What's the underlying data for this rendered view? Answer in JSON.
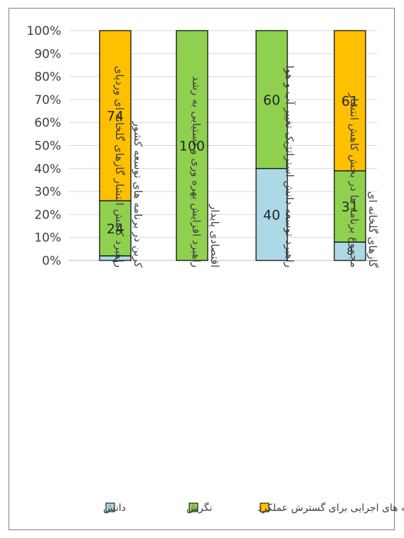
{
  "chart_data": {
    "type": "bar",
    "stacked": "percent",
    "categories": [
      [
        "راهبرد کاهش انتشار گازهای گلخانه ای وردپای",
        "کربن در برنامه های توسعه کشور"
      ],
      [
        "راهبرد افزایش بهره وری و دستیابی به رشد",
        "اقتصادی پایدار"
      ],
      [
        "راهبرد توسعه دانش استراتژیک تغییر آب و هوا"
      ],
      [
        "مجموع برنامه ها در بخش کاهش انتشار",
        "گازهای گلخانه ای"
      ]
    ],
    "series": [
      {
        "name": "دانش",
        "color": "#add8e6",
        "values": [
          2,
          0,
          40,
          8
        ]
      },
      {
        "name": "نگرش",
        "color": "#8fd14f",
        "values": [
          24,
          100,
          60,
          31
        ]
      },
      {
        "name": "برنامه های اجرایی برای گسترش عملکرد",
        "color": "#ffc000",
        "values": [
          74,
          0,
          0,
          61
        ]
      }
    ],
    "yticks": [
      "0%",
      "10%",
      "20%",
      "30%",
      "40%",
      "50%",
      "60%",
      "70%",
      "80%",
      "90%",
      "100%"
    ],
    "ylim": [
      0,
      100
    ],
    "grid": true,
    "legend_position": "bottom"
  },
  "legend": {
    "items": [
      {
        "label": "برنامه های اجرایی برای گسترش عملکرد",
        "color": "#ffc000"
      },
      {
        "label": "نگرش",
        "color": "#8fd14f"
      },
      {
        "label": "دانش",
        "color": "#add8e6"
      }
    ]
  }
}
